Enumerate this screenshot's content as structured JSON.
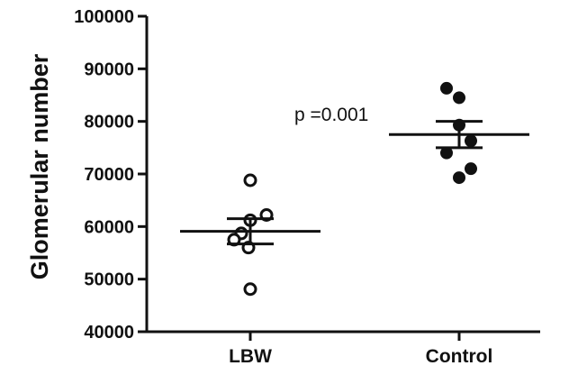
{
  "chart_data": {
    "type": "scatter",
    "title": "",
    "xlabel": "",
    "ylabel": "Glomerular number",
    "ylim": [
      40000,
      100000
    ],
    "yticks": [
      40000,
      50000,
      60000,
      70000,
      80000,
      90000,
      100000
    ],
    "ytick_labels": [
      "40000",
      "50000",
      "60000",
      "70000",
      "80000",
      "90000",
      "100000"
    ],
    "categories": [
      "LBW",
      "Control"
    ],
    "grid": false,
    "legend": "none",
    "series": [
      {
        "category": "LBW",
        "marker": "open-circle",
        "values": [
          68800,
          62200,
          61200,
          58700,
          57500,
          56000,
          48100
        ],
        "mean": 59100,
        "sem_low": 56700,
        "sem_high": 61500
      },
      {
        "category": "Control",
        "marker": "filled-circle",
        "values": [
          86300,
          84500,
          79300,
          76300,
          74000,
          71000,
          69300
        ],
        "mean": 77500,
        "sem_low": 75000,
        "sem_high": 80000
      }
    ],
    "annotations": [
      {
        "text": "p =0.001"
      }
    ]
  },
  "colors": {
    "ink": "#111111",
    "background": "#ffffff"
  }
}
